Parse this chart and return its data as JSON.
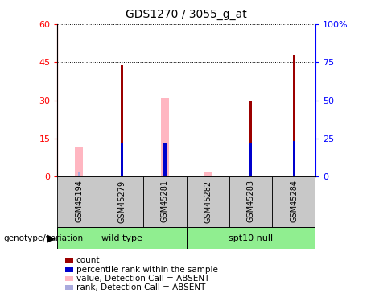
{
  "title": "GDS1270 / 3055_g_at",
  "samples": [
    "GSM45194",
    "GSM45279",
    "GSM45281",
    "GSM45282",
    "GSM45283",
    "GSM45284"
  ],
  "count_values": [
    0,
    44,
    0,
    0,
    30,
    48
  ],
  "percentile_values": [
    0,
    13,
    13,
    0,
    13,
    14
  ],
  "absent_value_values": [
    12,
    0,
    31,
    2,
    0,
    0
  ],
  "absent_rank_values": [
    2,
    0,
    0,
    0,
    0,
    0
  ],
  "left_yaxis_ticks": [
    0,
    15,
    30,
    45,
    60
  ],
  "right_yaxis_ticks": [
    0,
    25,
    50,
    75,
    100
  ],
  "left_ylim": [
    0,
    60
  ],
  "right_ylim": [
    0,
    100
  ],
  "count_color": "#9B0000",
  "percentile_color": "#0000CC",
  "absent_value_color": "#FFB6C1",
  "absent_rank_color": "#AAAADD",
  "legend_items": [
    {
      "label": "count",
      "color": "#9B0000"
    },
    {
      "label": "percentile rank within the sample",
      "color": "#0000CC"
    },
    {
      "label": "value, Detection Call = ABSENT",
      "color": "#FFB6C1"
    },
    {
      "label": "rank, Detection Call = ABSENT",
      "color": "#AAAADD"
    }
  ],
  "group_label": "genotype/variation",
  "wildtype_label": "wild type",
  "spt10_label": "spt10 null",
  "group_color": "#90EE90",
  "sample_bg_color": "#C8C8C8",
  "plot_bg": "#ffffff"
}
